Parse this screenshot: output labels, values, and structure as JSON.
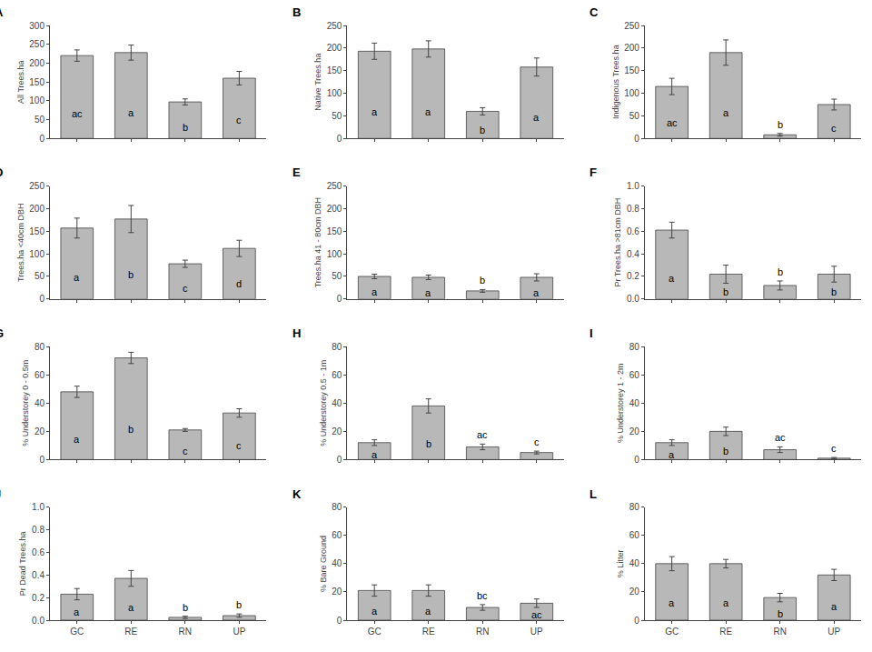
{
  "chart_data": [
    {
      "type": "bar",
      "title": "A",
      "ylabel": "All Trees.ha",
      "categories": [
        "GC",
        "RE",
        "RN",
        "UP"
      ],
      "values": [
        220,
        228,
        97,
        160
      ],
      "errors": [
        15,
        20,
        8,
        18
      ],
      "annotations": [
        "ac",
        "a",
        "b",
        "c"
      ],
      "color": "#b8b8b8",
      "ylim": [
        0,
        300
      ],
      "yticks": [
        0,
        50,
        100,
        150,
        200,
        250,
        300
      ],
      "grid": false,
      "tick_labels": "y"
    },
    {
      "type": "bar",
      "title": "B",
      "ylabel": "Native Trees.ha",
      "categories": [
        "GC",
        "RE",
        "RN",
        "UP"
      ],
      "values": [
        193,
        198,
        60,
        158
      ],
      "errors": [
        18,
        18,
        8,
        20
      ],
      "annotations": [
        "a",
        "a",
        "b",
        "a"
      ],
      "color": "#b8b8b8",
      "ylim": [
        0,
        250
      ],
      "yticks": [
        0,
        50,
        100,
        150,
        200,
        250
      ],
      "grid": false,
      "tick_labels": "y"
    },
    {
      "type": "bar",
      "title": "C",
      "ylabel": "Indigenous Trees.ha",
      "categories": [
        "GC",
        "RE",
        "RN",
        "UP"
      ],
      "values": [
        115,
        190,
        8,
        75
      ],
      "errors": [
        18,
        28,
        3,
        12
      ],
      "annotations": [
        "ac",
        "a",
        "b",
        "c"
      ],
      "color": "#b8b8b8",
      "ylim": [
        0,
        250
      ],
      "yticks": [
        0,
        50,
        100,
        150,
        200,
        250
      ],
      "grid": false,
      "tick_labels": "y"
    },
    {
      "type": "bar",
      "title": "D",
      "ylabel": "Trees.ha <40cm DBH",
      "categories": [
        "GC",
        "RE",
        "RN",
        "UP"
      ],
      "values": [
        157,
        177,
        78,
        112
      ],
      "errors": [
        22,
        30,
        8,
        18
      ],
      "annotations": [
        "a",
        "b",
        "c",
        "d"
      ],
      "color": "#b8b8b8",
      "ylim": [
        0,
        250
      ],
      "yticks": [
        0,
        50,
        100,
        150,
        200,
        250
      ],
      "grid": false,
      "tick_labels": "y"
    },
    {
      "type": "bar",
      "title": "E",
      "ylabel": "Trees.ha 41 - 80cm DBH",
      "categories": [
        "GC",
        "RE",
        "RN",
        "UP"
      ],
      "values": [
        50,
        48,
        18,
        48
      ],
      "errors": [
        5,
        5,
        3,
        8
      ],
      "annotations": [
        "a",
        "a",
        "b",
        "a"
      ],
      "color": "#b8b8b8",
      "ylim": [
        0,
        250
      ],
      "yticks": [
        0,
        50,
        100,
        150,
        200,
        250
      ],
      "grid": false,
      "tick_labels": "y"
    },
    {
      "type": "bar",
      "title": "F",
      "ylabel": "Pr Trees.ha >81cm DBH",
      "categories": [
        "GC",
        "RE",
        "RN",
        "UP"
      ],
      "values": [
        0.61,
        0.22,
        0.12,
        0.22
      ],
      "errors": [
        0.07,
        0.08,
        0.04,
        0.07
      ],
      "annotations": [
        "a",
        "b",
        "b",
        "b"
      ],
      "color": "#b8b8b8",
      "ylim": [
        0.0,
        1.0
      ],
      "yticks": [
        {
          "value": 0,
          "label": "0.0"
        },
        0.2,
        0.4,
        0.6,
        0.8,
        {
          "value": 1,
          "label": "1.0"
        }
      ],
      "grid": false,
      "tick_labels": "y"
    },
    {
      "type": "bar",
      "title": "G",
      "ylabel": "% Understorey 0 - 0.5m",
      "categories": [
        "GC",
        "RE",
        "RN",
        "UP"
      ],
      "values": [
        48,
        72,
        21,
        33
      ],
      "errors": [
        4,
        4,
        1,
        3
      ],
      "annotations": [
        "a",
        "b",
        "c",
        "c"
      ],
      "color": "#b8b8b8",
      "ylim": [
        0,
        80
      ],
      "yticks": [
        0,
        20,
        40,
        60,
        80
      ],
      "grid": false,
      "tick_labels": "y"
    },
    {
      "type": "bar",
      "title": "H",
      "ylabel": "% Understorey 0.5 - 1m",
      "categories": [
        "GC",
        "RE",
        "RN",
        "UP"
      ],
      "values": [
        12,
        38,
        9,
        5
      ],
      "errors": [
        2,
        5,
        2,
        1
      ],
      "annotations": [
        "a",
        "b",
        "ac",
        "c"
      ],
      "color": "#b8b8b8",
      "ylim": [
        0,
        80
      ],
      "yticks": [
        0,
        20,
        40,
        60,
        80
      ],
      "grid": false,
      "tick_labels": "y"
    },
    {
      "type": "bar",
      "title": "I",
      "ylabel": "% Understorey 1 - 2m",
      "categories": [
        "GC",
        "RE",
        "RN",
        "UP"
      ],
      "values": [
        12,
        20,
        7,
        1
      ],
      "errors": [
        2,
        3,
        2,
        0.5
      ],
      "annotations": [
        "a",
        "b",
        "ac",
        "c"
      ],
      "color": "#b8b8b8",
      "ylim": [
        0,
        80
      ],
      "yticks": [
        0,
        20,
        40,
        60,
        80
      ],
      "grid": false,
      "tick_labels": "y"
    },
    {
      "type": "bar",
      "title": "J",
      "ylabel": "Pr Dead Trees.ha",
      "categories": [
        "GC",
        "RE",
        "RN",
        "UP"
      ],
      "values": [
        0.23,
        0.37,
        0.025,
        0.04
      ],
      "errors": [
        0.05,
        0.07,
        0.01,
        0.015
      ],
      "annotations": [
        "a",
        "a",
        "b",
        "b"
      ],
      "color": "#b8b8b8",
      "ylim": [
        0.0,
        1.0
      ],
      "yticks": [
        {
          "value": 0,
          "label": "0.0"
        },
        0.2,
        0.4,
        0.6,
        0.8,
        {
          "value": 1,
          "label": "1.0"
        }
      ],
      "grid": false
    },
    {
      "type": "bar",
      "title": "K",
      "ylabel": "% Bare Ground",
      "categories": [
        "GC",
        "RE",
        "RN",
        "UP"
      ],
      "values": [
        21,
        21,
        9,
        12
      ],
      "errors": [
        4,
        4,
        2,
        3
      ],
      "annotations": [
        "a",
        "a",
        "bc",
        "ac"
      ],
      "color": "#b8b8b8",
      "ylim": [
        0,
        80
      ],
      "yticks": [
        0,
        20,
        40,
        60,
        80
      ],
      "grid": false
    },
    {
      "type": "bar",
      "title": "L",
      "ylabel": "% Litter",
      "categories": [
        "GC",
        "RE",
        "RN",
        "UP"
      ],
      "values": [
        40,
        40,
        16,
        32
      ],
      "errors": [
        5,
        3,
        3,
        4
      ],
      "annotations": [
        "a",
        "a",
        "b",
        "a"
      ],
      "color": "#b8b8b8",
      "ylim": [
        0,
        80
      ],
      "yticks": [
        0,
        20,
        40,
        60,
        80
      ],
      "grid": false
    }
  ]
}
